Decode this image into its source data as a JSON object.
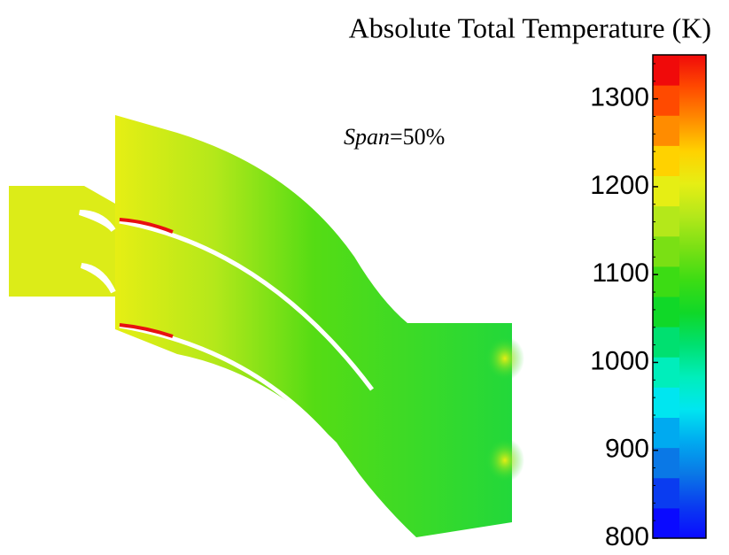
{
  "chart_data": {
    "type": "colorbar",
    "title": "Absolute Total Temperature (K)",
    "annotation_variable": "Span",
    "annotation_value": "=50%",
    "ylim": [
      800,
      1350
    ],
    "yticks": [
      800,
      900,
      1000,
      1100,
      1200,
      1300
    ],
    "colors": [
      "#0a0aff",
      "#0a3cf0",
      "#0a78e6",
      "#00aaf0",
      "#00e6f0",
      "#00eebb",
      "#00e070",
      "#10d828",
      "#3cdc14",
      "#7ae014",
      "#b4e81a",
      "#e6ee14",
      "#ffd200",
      "#ff8c00",
      "#ff4a00",
      "#f00a0a"
    ]
  }
}
